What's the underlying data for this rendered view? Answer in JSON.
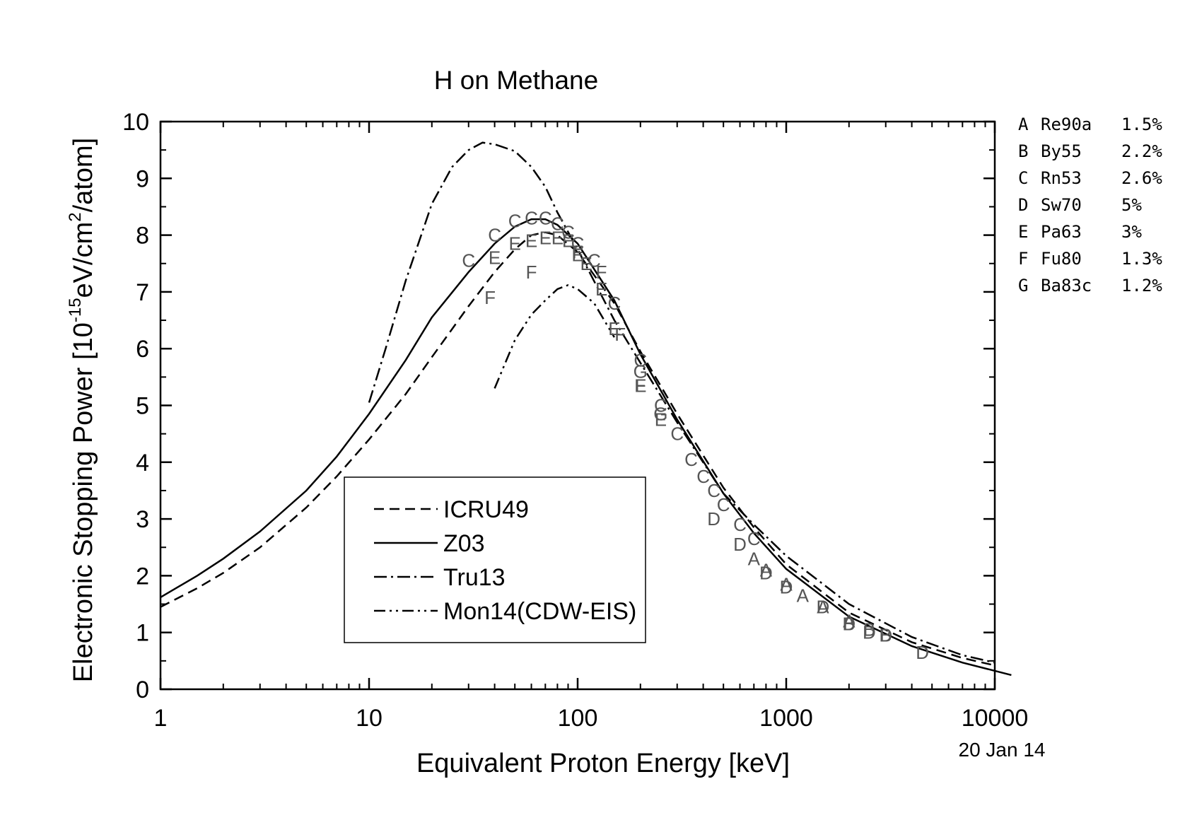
{
  "chart_data": {
    "type": "line",
    "title": "H on Methane",
    "xlabel": "Equivalent Proton Energy [keV]",
    "ylabel": "Electronic Stopping Power [10",
    "ylabel_sup1": "-15",
    "ylabel_mid": "eV/cm",
    "ylabel_sup2": "2",
    "ylabel_end": "/atom]",
    "date_stamp": "20 Jan 14",
    "xscale": "log",
    "xlim": [
      1,
      10000
    ],
    "ylim": [
      0,
      10
    ],
    "x_ticks": [
      "1",
      "10",
      "100",
      "1000",
      "10000"
    ],
    "y_ticks": [
      "0",
      "1",
      "2",
      "3",
      "4",
      "5",
      "6",
      "7",
      "8",
      "9",
      "10"
    ],
    "grid": false,
    "legend": "lower-center",
    "series": [
      {
        "name": "ICRU49",
        "style": "dashed",
        "points": [
          [
            1,
            1.45
          ],
          [
            1.5,
            1.78
          ],
          [
            2,
            2.05
          ],
          [
            3,
            2.5
          ],
          [
            5,
            3.2
          ],
          [
            7,
            3.75
          ],
          [
            10,
            4.4
          ],
          [
            15,
            5.2
          ],
          [
            20,
            5.85
          ],
          [
            30,
            6.75
          ],
          [
            40,
            7.35
          ],
          [
            50,
            7.75
          ],
          [
            60,
            8.0
          ],
          [
            70,
            8.05
          ],
          [
            80,
            8.0
          ],
          [
            100,
            7.7
          ],
          [
            150,
            6.8
          ],
          [
            200,
            5.95
          ],
          [
            300,
            4.85
          ],
          [
            500,
            3.55
          ],
          [
            700,
            2.85
          ],
          [
            1000,
            2.2
          ],
          [
            2000,
            1.35
          ],
          [
            4000,
            0.83
          ],
          [
            7000,
            0.55
          ],
          [
            10000,
            0.42
          ]
        ]
      },
      {
        "name": "Z03",
        "style": "solid",
        "points": [
          [
            1,
            1.62
          ],
          [
            1.5,
            2.0
          ],
          [
            2,
            2.3
          ],
          [
            3,
            2.78
          ],
          [
            5,
            3.5
          ],
          [
            7,
            4.1
          ],
          [
            10,
            4.85
          ],
          [
            15,
            5.8
          ],
          [
            20,
            6.55
          ],
          [
            30,
            7.35
          ],
          [
            40,
            7.85
          ],
          [
            50,
            8.15
          ],
          [
            60,
            8.28
          ],
          [
            70,
            8.28
          ],
          [
            80,
            8.18
          ],
          [
            100,
            7.85
          ],
          [
            150,
            6.85
          ],
          [
            200,
            5.9
          ],
          [
            300,
            4.75
          ],
          [
            500,
            3.45
          ],
          [
            700,
            2.75
          ],
          [
            1000,
            2.12
          ],
          [
            2000,
            1.28
          ],
          [
            4000,
            0.76
          ],
          [
            7000,
            0.47
          ],
          [
            12000,
            0.25
          ]
        ]
      },
      {
        "name": "Tru13",
        "style": "dash-dot",
        "points": [
          [
            10,
            5.05
          ],
          [
            12,
            6.0
          ],
          [
            15,
            7.2
          ],
          [
            20,
            8.55
          ],
          [
            25,
            9.2
          ],
          [
            30,
            9.5
          ],
          [
            35,
            9.63
          ],
          [
            40,
            9.6
          ],
          [
            50,
            9.48
          ],
          [
            60,
            9.2
          ],
          [
            70,
            8.85
          ],
          [
            80,
            8.4
          ],
          [
            100,
            7.75
          ],
          [
            150,
            6.5
          ],
          [
            200,
            5.75
          ],
          [
            300,
            4.7
          ],
          [
            500,
            3.45
          ],
          [
            700,
            2.9
          ],
          [
            1000,
            2.35
          ],
          [
            2000,
            1.5
          ],
          [
            4000,
            0.92
          ],
          [
            7000,
            0.6
          ],
          [
            10000,
            0.47
          ]
        ]
      },
      {
        "name": "Mon14(CDW-EIS)",
        "style": "dash-dot-dot",
        "points": [
          [
            40,
            5.3
          ],
          [
            45,
            5.75
          ],
          [
            50,
            6.15
          ],
          [
            60,
            6.6
          ],
          [
            70,
            6.85
          ],
          [
            80,
            7.05
          ],
          [
            90,
            7.12
          ],
          [
            100,
            7.05
          ],
          [
            120,
            6.8
          ],
          [
            150,
            6.2
          ]
        ]
      }
    ],
    "measurements": [
      {
        "label": "A",
        "ref": "Re90a",
        "uncertainty": "1.5%",
        "points": [
          [
            700,
            2.3
          ],
          [
            800,
            2.1
          ],
          [
            1000,
            1.85
          ],
          [
            1200,
            1.65
          ],
          [
            1500,
            1.45
          ],
          [
            2000,
            1.2
          ]
        ]
      },
      {
        "label": "B",
        "ref": "By55",
        "uncertainty": "2.2%",
        "points": [
          [
            2000,
            1.15
          ],
          [
            2500,
            1.05
          ],
          [
            3000,
            0.95
          ]
        ]
      },
      {
        "label": "C",
        "ref": "Rn53",
        "uncertainty": "2.6%",
        "points": [
          [
            30,
            7.55
          ],
          [
            40,
            8.0
          ],
          [
            50,
            8.25
          ],
          [
            60,
            8.3
          ],
          [
            70,
            8.3
          ],
          [
            80,
            8.2
          ],
          [
            90,
            8.05
          ],
          [
            100,
            7.85
          ],
          [
            120,
            7.55
          ],
          [
            150,
            6.8
          ],
          [
            200,
            5.8
          ],
          [
            250,
            5.0
          ],
          [
            300,
            4.5
          ],
          [
            350,
            4.05
          ],
          [
            400,
            3.75
          ],
          [
            450,
            3.5
          ],
          [
            500,
            3.25
          ],
          [
            600,
            2.9
          ],
          [
            700,
            2.65
          ]
        ]
      },
      {
        "label": "D",
        "ref": "Sw70",
        "uncertainty": "5%",
        "points": [
          [
            450,
            3.0
          ],
          [
            600,
            2.55
          ],
          [
            800,
            2.05
          ],
          [
            1000,
            1.8
          ],
          [
            1500,
            1.45
          ],
          [
            2000,
            1.15
          ],
          [
            2500,
            1.0
          ],
          [
            3000,
            0.95
          ],
          [
            4500,
            0.65
          ]
        ]
      },
      {
        "label": "E",
        "ref": "Pa63",
        "uncertainty": "3%",
        "points": [
          [
            40,
            7.6
          ],
          [
            50,
            7.85
          ],
          [
            60,
            7.9
          ],
          [
            70,
            7.95
          ],
          [
            80,
            7.95
          ],
          [
            90,
            7.9
          ],
          [
            100,
            7.65
          ],
          [
            110,
            7.5
          ],
          [
            130,
            7.05
          ],
          [
            150,
            6.35
          ],
          [
            200,
            5.35
          ],
          [
            250,
            4.75
          ]
        ]
      },
      {
        "label": "F",
        "ref": "Fu80",
        "uncertainty": "1.3%",
        "points": [
          [
            38,
            6.9
          ],
          [
            60,
            7.35
          ],
          [
            100,
            7.7
          ],
          [
            130,
            7.35
          ],
          [
            160,
            6.25
          ],
          [
            200,
            5.35
          ]
        ]
      },
      {
        "label": "G",
        "ref": "Ba83c",
        "uncertainty": "1.2%",
        "points": [
          [
            200,
            5.6
          ],
          [
            250,
            4.85
          ]
        ]
      }
    ]
  }
}
